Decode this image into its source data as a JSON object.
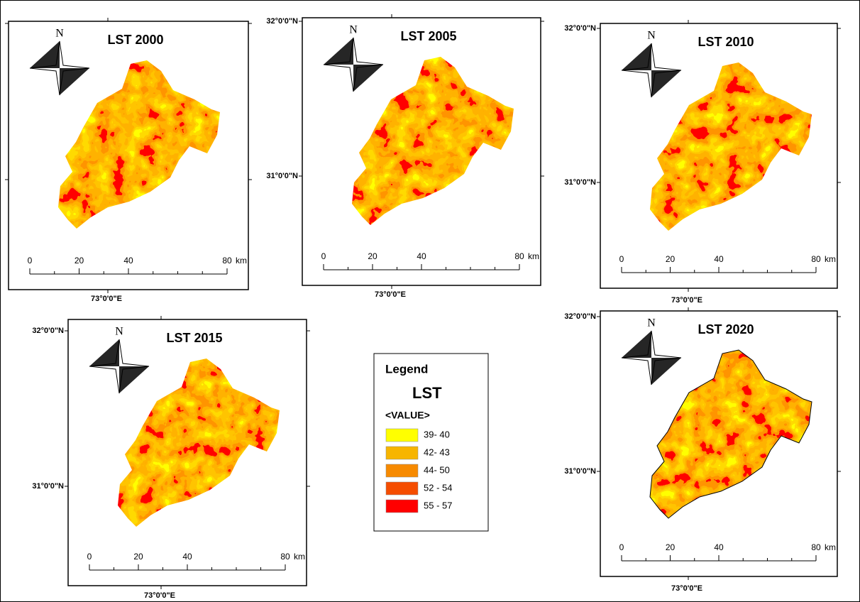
{
  "panels": [
    {
      "title": "LST 2000",
      "north": "N",
      "lat_labels": [],
      "lon_label": "73°0'0\"E"
    },
    {
      "title": "LST 2005",
      "north": "N",
      "lat_labels": [
        "32°0'0\"N",
        "31°0'0\"N"
      ],
      "lon_label": "73°0'0\"E"
    },
    {
      "title": "LST 2010",
      "north": "N",
      "lat_labels": [
        "32°0'0\"N",
        "31°0'0\"N"
      ],
      "lon_label": "73°0'0\"E"
    },
    {
      "title": "LST 2015",
      "north": "N",
      "lat_labels": [
        "32°0'0\"N",
        "31°0'0\"N"
      ],
      "lon_label": "73°0'0\"E"
    },
    {
      "title": "LST 2020",
      "north": "N",
      "lat_labels": [
        "32°0'0\"N",
        "31°0'0\"N"
      ],
      "lon_label": "73°0'0\"E"
    }
  ],
  "scale": {
    "ticks": [
      0,
      20,
      40,
      80
    ],
    "unit": "km"
  },
  "legend": {
    "title": "Legend",
    "layer": "LST",
    "field": "<VALUE>",
    "items": [
      {
        "label": "39- 40",
        "color": "#ffff00"
      },
      {
        "label": "42- 43",
        "color": "#f7b500"
      },
      {
        "label": "44- 50",
        "color": "#f78a00"
      },
      {
        "label": "52 - 54",
        "color": "#f54d00"
      },
      {
        "label": "55 - 57",
        "color": "#ff0000"
      }
    ]
  }
}
